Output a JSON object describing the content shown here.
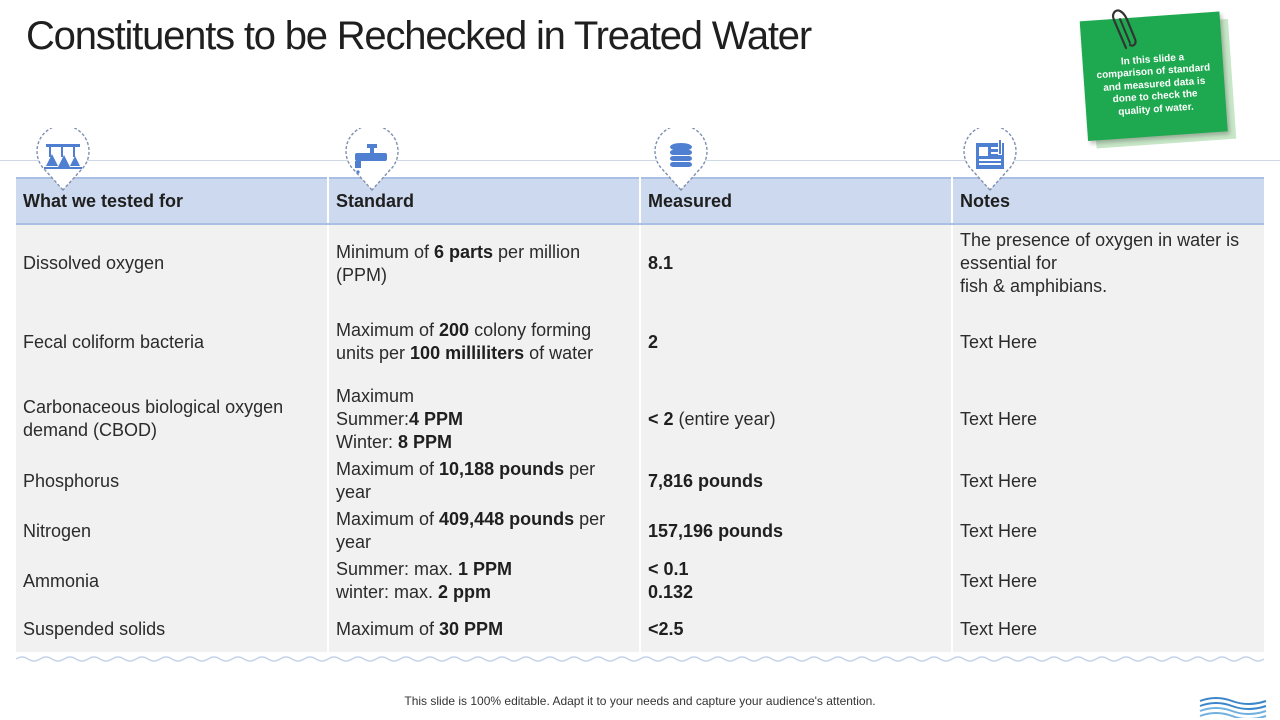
{
  "title": "Constituents to be Rechecked in Treated Water",
  "note": "In this slide a comparison of standard and measured data is done to check the quality of water.",
  "headers": [
    "What we tested for",
    "Standard",
    "Measured",
    "Notes"
  ],
  "icons": [
    "lab-flask-icon",
    "water-tap-icon",
    "database-icon",
    "document-icon"
  ],
  "rows": [
    {
      "item": "Dissolved oxygen",
      "standard": [
        "Minimum of ",
        {
          "b": "6 parts"
        },
        " per million (PPM)"
      ],
      "measured": [
        {
          "b": "8.1"
        }
      ],
      "notes": "The presence of oxygen in water is essential for\n fish & amphibians."
    },
    {
      "item": "Fecal coliform bacteria",
      "standard": [
        "Maximum of ",
        {
          "b": "200"
        },
        " colony forming units per ",
        {
          "b": "100 milliliters"
        },
        " of water"
      ],
      "measured": [
        {
          "b": "2"
        }
      ],
      "notes": " Text Here"
    },
    {
      "item": "Carbonaceous biological oxygen demand (CBOD)",
      "standard": [
        "Maximum\nSummer:",
        {
          "b": "4 PPM"
        },
        "\nWinter: ",
        {
          "b": "8 PPM"
        }
      ],
      "measured": [
        {
          "b": "< 2"
        },
        " (entire year)"
      ],
      "notes": " Text Here"
    },
    {
      "item": "Phosphorus",
      "standard": [
        "Maximum of ",
        {
          "b": "10,188 pounds"
        },
        " per year"
      ],
      "measured": [
        {
          "b": "7,816 pounds"
        }
      ],
      "notes": " Text Here"
    },
    {
      "item": "Nitrogen",
      "standard": [
        "Maximum of ",
        {
          "b": "409,448 pounds"
        },
        " per year"
      ],
      "measured": [
        {
          "b": "157,196 pounds"
        }
      ],
      "notes": " Text Here"
    },
    {
      "item": "Ammonia",
      "standard": [
        "Summer: max. ",
        {
          "b": "1 PPM"
        },
        "\nwinter:     max. ",
        {
          "b": "2 ppm"
        }
      ],
      "measured": [
        {
          "b": "< 0.1\n0.132"
        }
      ],
      "notes": " Text Here"
    },
    {
      "item": "Suspended solids",
      "standard": [
        "Maximum of ",
        {
          "b": "30 PPM"
        }
      ],
      "measured": [
        {
          "b": "<2.5"
        }
      ],
      "notes": " Text Here"
    }
  ],
  "footer": "This slide is 100% editable. Adapt it to your needs and capture your audience's attention.",
  "colors": {
    "header_bg": "#cdd9ef",
    "row_bg": "#f1f1f1",
    "note_green": "#1ea84f",
    "icon_blue": "#4f7fd0"
  }
}
